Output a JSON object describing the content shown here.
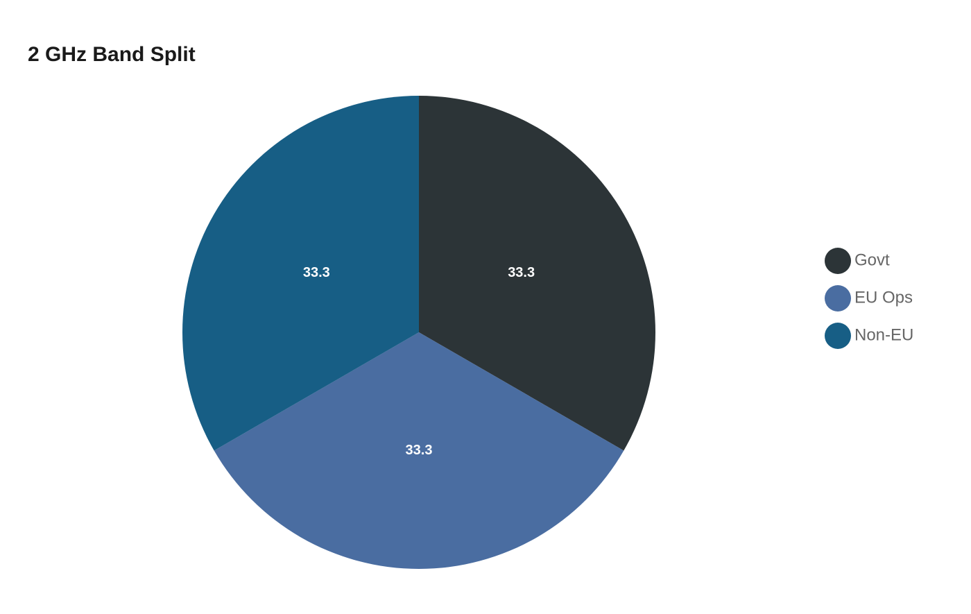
{
  "chart_data": {
    "type": "pie",
    "title": "2 GHz Band Split",
    "series": [
      {
        "name": "Govt",
        "color": "#2c3437",
        "values": [
          33.3
        ]
      },
      {
        "name": "EU Ops",
        "color": "#4a6da1",
        "values": [
          33.3
        ]
      },
      {
        "name": "Non-EU",
        "color": "#175e85",
        "values": [
          33.3
        ]
      }
    ]
  }
}
